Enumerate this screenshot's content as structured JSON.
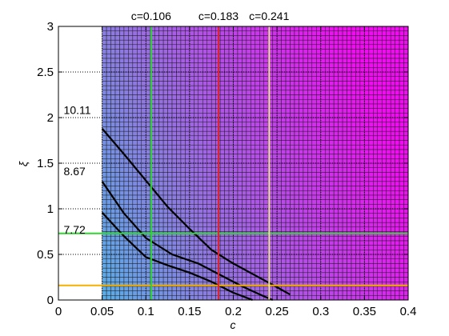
{
  "chart_data": {
    "type": "heatmap",
    "title": "",
    "xlabel": "c",
    "ylabel": "ξ",
    "xlim": [
      0,
      0.4
    ],
    "ylim": [
      0,
      3
    ],
    "xticks": [
      "0",
      "0.05",
      "0.1",
      "0.15",
      "0.2",
      "0.25",
      "0.3",
      "0.35",
      "0.4"
    ],
    "yticks": [
      "0",
      "0.5",
      "1",
      "1.5",
      "2",
      "2.5",
      "3"
    ],
    "grid": true,
    "colormap": {
      "low": "#19ecef",
      "mid": "#8a7de0",
      "high": "#f00cf0"
    },
    "grid_cells": {
      "x_from": 0.05,
      "dx": 0.005,
      "y_from": 0,
      "dy": 0.05
    },
    "vertical_lines": [
      {
        "x": 0.106,
        "label": "c=0.106",
        "color": "#2fd62f"
      },
      {
        "x": 0.183,
        "label": "c=0.183",
        "color": "#e0222a"
      },
      {
        "x": 0.241,
        "label": "c=0.241",
        "color": "#f0e49a"
      }
    ],
    "horizontal_lines": [
      {
        "y": 0.73,
        "color": "#2fd62f"
      },
      {
        "y": 0.16,
        "color": "#f5b000"
      }
    ],
    "contour_labels": [
      "10.11",
      "8.67",
      "7.72"
    ],
    "contours": [
      {
        "label": "10.11",
        "label_pos": [
          0.006,
          2.04
        ],
        "x": [
          0.05,
          0.075,
          0.1,
          0.125,
          0.15,
          0.175,
          0.2,
          0.225,
          0.25,
          0.265
        ],
        "y": [
          1.88,
          1.6,
          1.31,
          1.02,
          0.78,
          0.55,
          0.4,
          0.27,
          0.14,
          0.06
        ]
      },
      {
        "label": "8.67",
        "label_pos": [
          0.006,
          1.37
        ],
        "x": [
          0.05,
          0.075,
          0.1,
          0.13,
          0.16,
          0.19,
          0.21,
          0.235,
          0.245
        ],
        "y": [
          1.3,
          0.95,
          0.68,
          0.5,
          0.4,
          0.25,
          0.15,
          0.04,
          0.0
        ]
      },
      {
        "label": "7.72",
        "label_pos": [
          0.006,
          0.73
        ],
        "x": [
          0.05,
          0.075,
          0.1,
          0.125,
          0.15,
          0.175,
          0.2,
          0.222
        ],
        "y": [
          0.96,
          0.7,
          0.47,
          0.38,
          0.3,
          0.2,
          0.08,
          0.0
        ]
      }
    ]
  }
}
